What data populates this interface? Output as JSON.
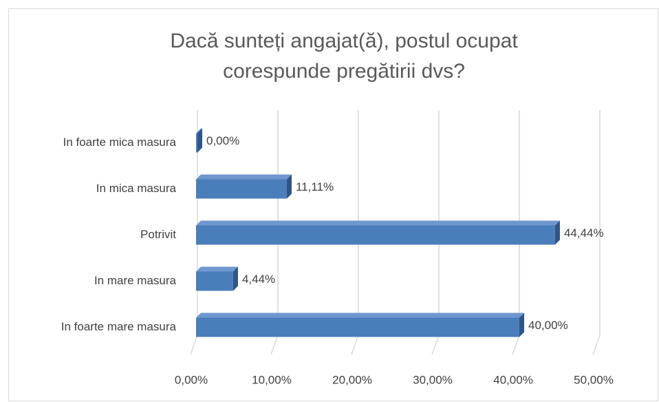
{
  "chart_data": {
    "type": "bar",
    "orientation": "horizontal",
    "title": "Dacă sunteți angajat(ă), postul ocupat corespunde pregătirii dvs?",
    "categories": [
      "In foarte mica masura",
      "In mica masura",
      "Potrivit",
      "In mare masura",
      "In foarte mare masura"
    ],
    "values": [
      0,
      11.11,
      44.44,
      4.44,
      40
    ],
    "value_labels": [
      "0,00%",
      "11,11%",
      "44,44%",
      "4,44%",
      "40,00%"
    ],
    "color": "#4a7ebb",
    "xlim": [
      0,
      50
    ],
    "xticks": [
      {
        "value": 0,
        "label": "0,00%"
      },
      {
        "value": 10,
        "label": "10,00%"
      },
      {
        "value": 20,
        "label": "20,00%"
      },
      {
        "value": 30,
        "label": "30,00%"
      },
      {
        "value": 40,
        "label": "40,00%"
      },
      {
        "value": 50,
        "label": "50,00%"
      }
    ],
    "grid": true
  }
}
